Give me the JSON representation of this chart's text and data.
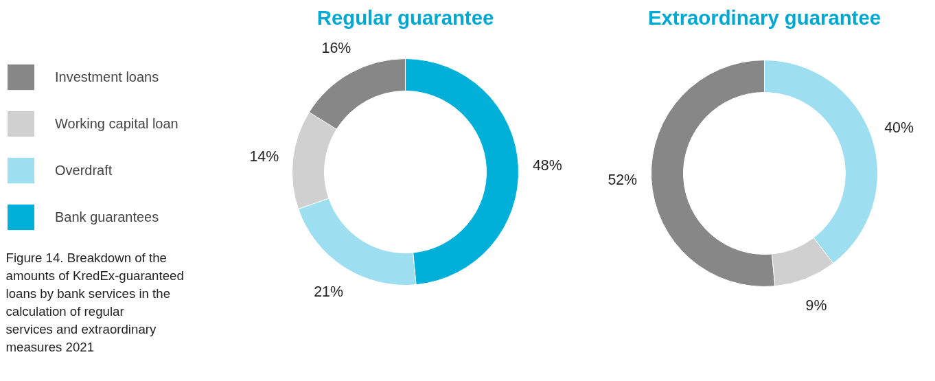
{
  "chart_data": [
    {
      "type": "donut",
      "title": "Regular guarantee",
      "categories": [
        "Investment loans",
        "Working capital loan",
        "Overdraft",
        "Bank guarantees"
      ],
      "values": [
        16,
        14,
        21,
        48
      ],
      "colors": [
        "#878787",
        "#d0d0d0",
        "#9ddff0",
        "#00b0d8"
      ],
      "value_labels": [
        "16%",
        "14%",
        "21%",
        "48%"
      ],
      "legend": "left",
      "annotations": [
        "Figure 14. Breakdown of the amounts of KredEx-guaranteed loans by bank services in the calculation of regular services and extraordinary measures 2021"
      ]
    },
    {
      "type": "donut",
      "title": "Extraordinary guarantee",
      "categories": [
        null,
        null,
        null
      ],
      "values": [
        52,
        9,
        40
      ],
      "colors": [
        "#878787",
        "#d0d0d0",
        "#9ddff0"
      ],
      "value_labels": [
        "52%",
        "9%",
        "40%"
      ]
    }
  ]
}
